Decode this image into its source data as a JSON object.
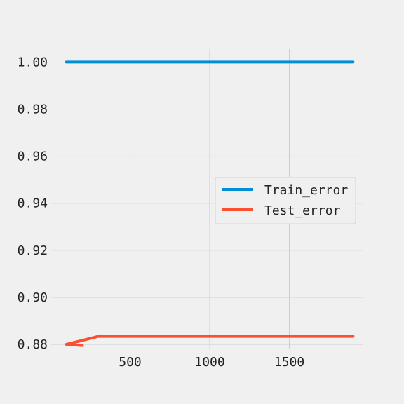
{
  "chart_data": {
    "type": "line",
    "title": "",
    "xlabel": "",
    "ylabel": "",
    "xlim": [
      0,
      1960
    ],
    "ylim": [
      0.8782,
      1.0055
    ],
    "x_ticks": [
      500,
      1000,
      1500
    ],
    "x_tick_labels": [
      "500",
      "1000",
      "1500"
    ],
    "y_ticks": [
      0.88,
      0.9,
      0.92,
      0.94,
      0.96,
      0.98,
      1.0
    ],
    "y_tick_labels": [
      "0.88",
      "0.90",
      "0.92",
      "0.94",
      "0.96",
      "0.98",
      "1.00"
    ],
    "grid": true,
    "legend_position": "center-right",
    "series": [
      {
        "name": "Train_error",
        "color": "#008fd5",
        "x": [
          100,
          1900
        ],
        "y": [
          1.0,
          1.0
        ]
      },
      {
        "name": "Test_error",
        "color": "#fc4f30",
        "x": [
          100,
          200,
          100,
          300,
          500,
          1000,
          1500,
          1900
        ],
        "y": [
          0.88,
          0.8795,
          0.88,
          0.8834,
          0.8834,
          0.8834,
          0.8834,
          0.8834
        ]
      }
    ]
  }
}
